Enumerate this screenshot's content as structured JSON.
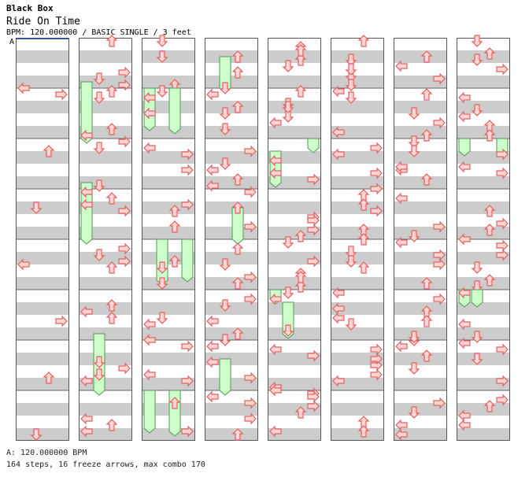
{
  "header": {
    "title": "Black Box",
    "song": "Ride On Time",
    "info": "BPM: 120.000000 / BASIC SINGLE / 3 feet"
  },
  "bpm_marker": "A",
  "footer": {
    "bpm": "A: 120.000000 BPM",
    "stats": "164 steps, 16 freeze arrows, max combo 170"
  },
  "colors": {
    "arrow_fill": "#ffd4d4",
    "arrow_stroke": "#e06060",
    "freeze_fill": "#ccffcc",
    "freeze_stroke": "#4d9a4d",
    "stripe": "#cccccc"
  },
  "chart_data": {
    "type": "step-chart",
    "lanes": [
      "left",
      "down",
      "up",
      "right"
    ],
    "rows_per_measure": 16,
    "measures": [
      {
        "notes": [
          [
            15,
            0
          ]
        ],
        "freezes": []
      },
      {
        "notes": [
          [
            10,
            2
          ],
          [
            12,
            3
          ],
          [
            14,
            0
          ],
          [
            16,
            2
          ]
        ],
        "freezes": [
          [
            14,
            0,
            18
          ]
        ]
      },
      {
        "notes": [
          [
            5,
            3
          ],
          [
            14,
            3
          ],
          [
            0,
            1
          ]
        ],
        "freezes": [
          [
            0,
            1,
            13
          ],
          [
            0,
            3,
            12
          ]
        ]
      },
      {
        "notes": [
          [
            5,
            3
          ],
          [
            10,
            2
          ],
          [
            15,
            0
          ],
          [
            3,
            1
          ],
          [
            8,
            1
          ]
        ],
        "freezes": [
          [
            6,
            1,
            10
          ]
        ]
      },
      {
        "notes": [
          [
            2,
            2
          ],
          [
            6,
            1
          ],
          [
            8,
            3
          ],
          [
            3,
            3
          ],
          [
            14,
            3
          ],
          [
            12,
            0
          ]
        ],
        "freezes": [
          [
            0,
            3,
            3
          ],
          [
            4,
            0,
            10
          ]
        ]
      },
      {
        "notes": [
          [
            0,
            1
          ],
          [
            11,
            3
          ],
          [
            14,
            2
          ],
          [
            6,
            1
          ],
          [
            9,
            0
          ],
          [
            12,
            1
          ]
        ],
        "freezes": []
      },
      {
        "notes": [
          [
            5,
            0
          ],
          [
            8,
            1
          ],
          [
            12,
            3
          ],
          [
            15,
            2
          ],
          [
            4,
            0
          ],
          [
            0,
            2
          ],
          [
            13,
            2
          ]
        ],
        "freezes": []
      },
      {
        "notes": [
          [
            0,
            2
          ],
          [
            4,
            2
          ],
          [
            6,
            0
          ],
          [
            9,
            1
          ],
          [
            12,
            0
          ],
          [
            15,
            0
          ],
          [
            6,
            3
          ],
          [
            10,
            1
          ],
          [
            14,
            2
          ],
          [
            3,
            3
          ]
        ],
        "freezes": [
          [
            0,
            0,
            4
          ],
          [
            0,
            3,
            4
          ]
        ]
      }
    ]
  }
}
